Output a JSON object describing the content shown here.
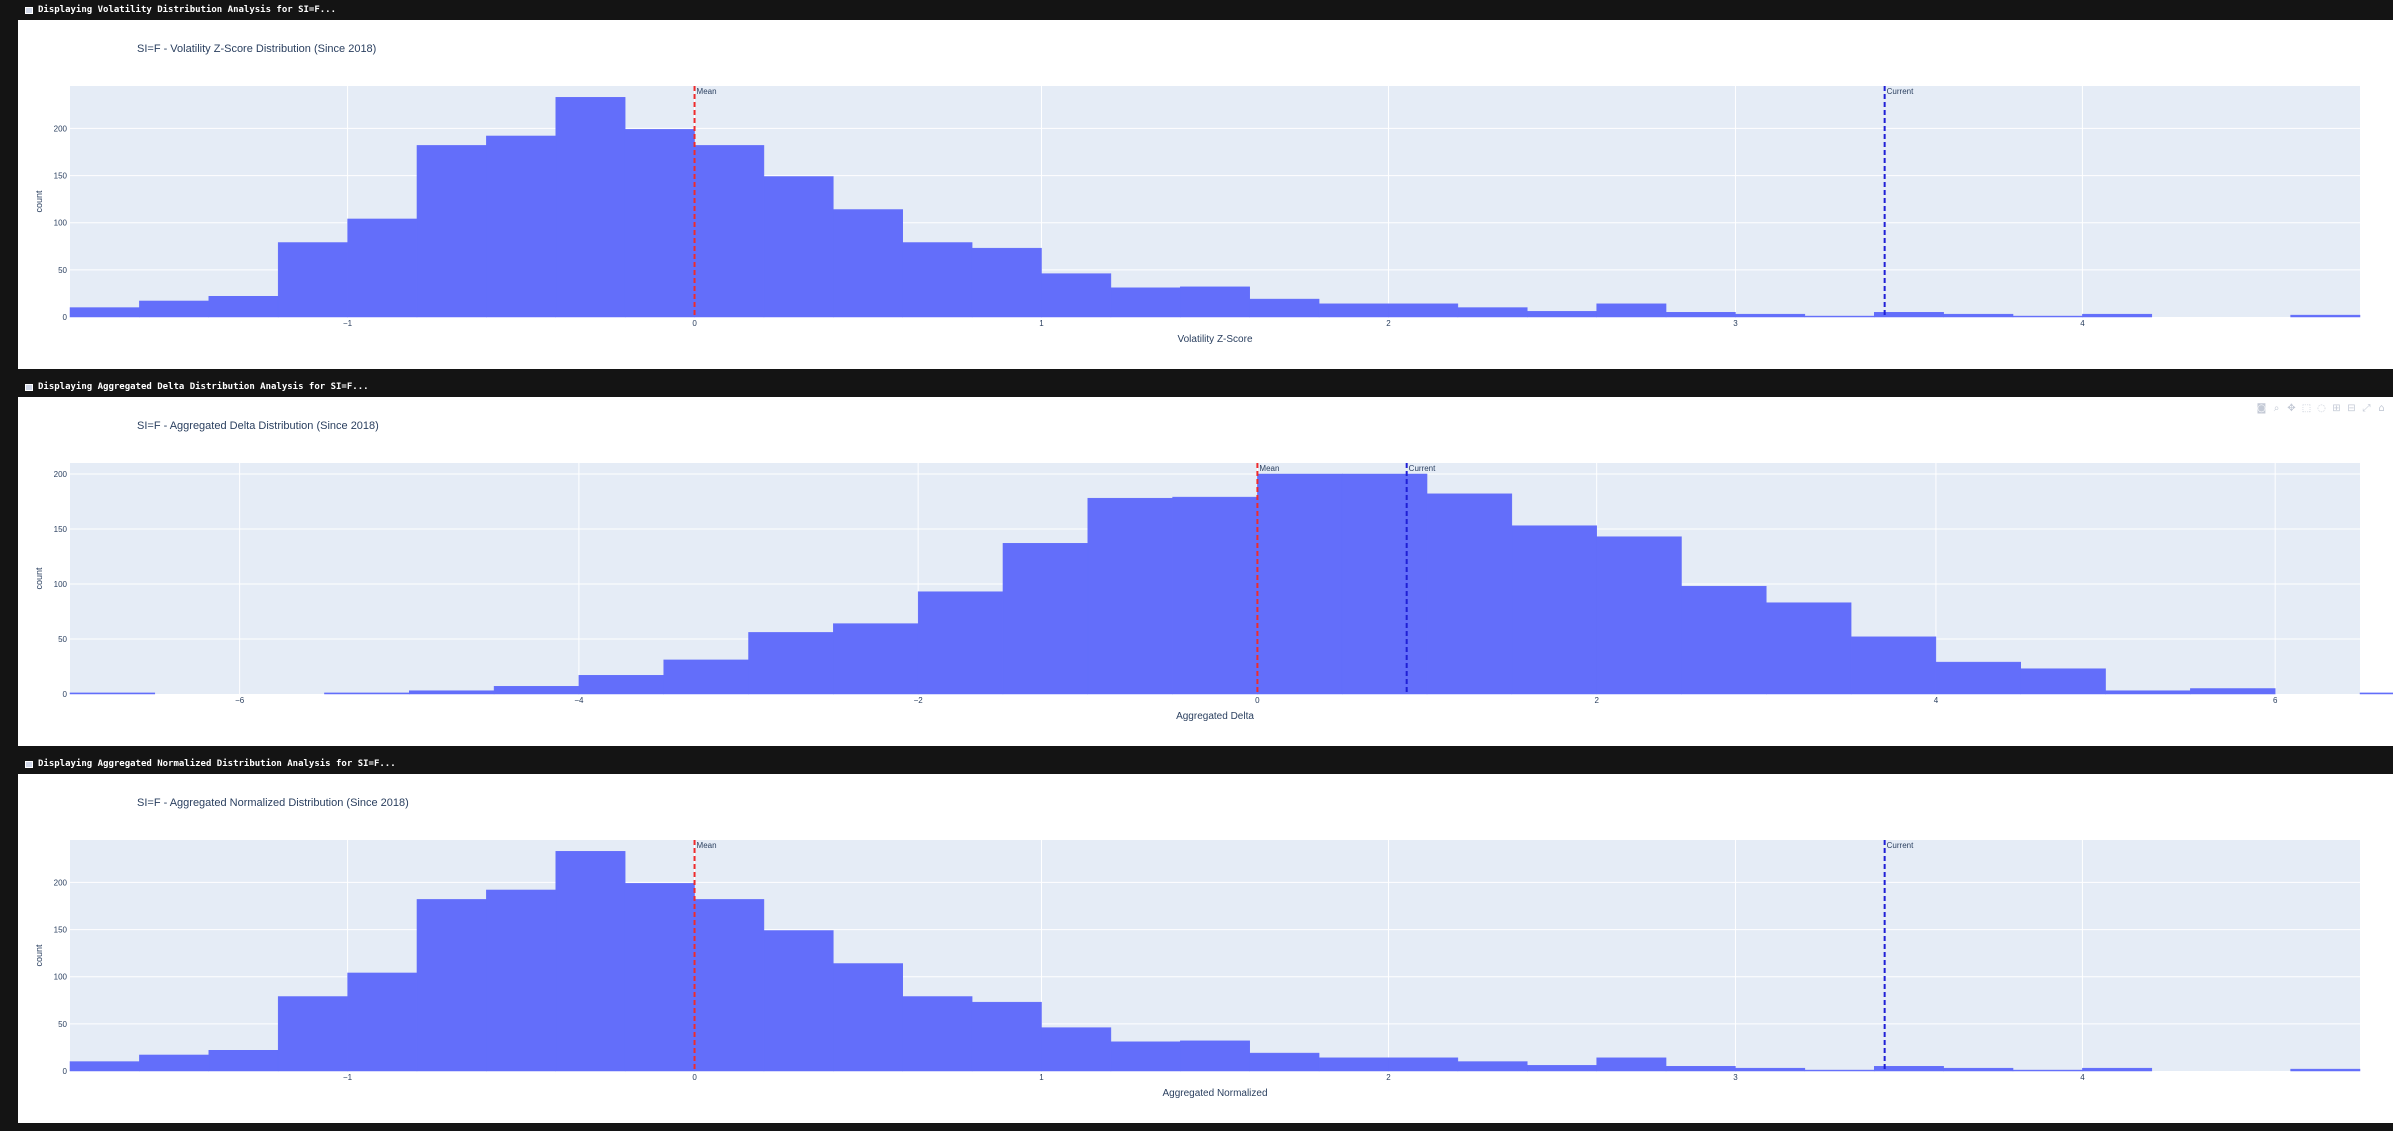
{
  "sections": [
    {
      "header": "Displaying Volatility Distribution Analysis for SI=F...",
      "show_modebar": false,
      "chart": {
        "type": "bar",
        "title": "SI=F - Volatility Z-Score Distribution (Since 2018)",
        "xlabel": "Volatility Z-Score",
        "ylabel": "count",
        "xlim": [
          -1.8,
          4.8
        ],
        "ylim": [
          0,
          245
        ],
        "bin_start": -1.8,
        "bin_width": 0.2,
        "values": [
          10,
          17,
          22,
          79,
          104,
          182,
          192,
          233,
          199,
          182,
          149,
          114,
          79,
          73,
          46,
          31,
          32,
          19,
          14,
          14,
          10,
          6,
          14,
          5,
          3,
          1,
          5,
          3,
          1,
          3,
          0,
          0,
          2
        ],
        "xticks": [
          -1,
          0,
          1,
          2,
          3,
          4
        ],
        "yticks": [
          0,
          50,
          100,
          150,
          200
        ],
        "mean": 0,
        "current": 3.43,
        "mean_label": "Mean",
        "current_label": "Current"
      }
    },
    {
      "header": "Displaying Aggregated Delta Distribution Analysis for SI=F...",
      "show_modebar": true,
      "chart": {
        "type": "bar",
        "title": "SI=F - Aggregated Delta Distribution (Since 2018)",
        "xlabel": "Aggregated Delta",
        "ylabel": "count",
        "xlim": [
          -7,
          6.5
        ],
        "ylim": [
          0,
          210
        ],
        "bin_start": -7,
        "bin_width": 0.5,
        "values": [
          1,
          0,
          0,
          1,
          3,
          7,
          17,
          31,
          56,
          64,
          93,
          137,
          178,
          179,
          200,
          200,
          182,
          153,
          143,
          98,
          83,
          52,
          29,
          23,
          3,
          5,
          0,
          1
        ],
        "xticks": [
          -6,
          -4,
          -2,
          0,
          2,
          4,
          6
        ],
        "yticks": [
          0,
          50,
          100,
          150,
          200
        ],
        "mean": 0,
        "current": 0.88,
        "mean_label": "Mean",
        "current_label": "Current"
      }
    },
    {
      "header": "Displaying Aggregated Normalized Distribution Analysis for SI=F...",
      "show_modebar": false,
      "chart": {
        "type": "bar",
        "title": "SI=F - Aggregated Normalized Distribution (Since 2018)",
        "xlabel": "Aggregated Normalized",
        "ylabel": "count",
        "xlim": [
          -1.8,
          4.8
        ],
        "ylim": [
          0,
          245
        ],
        "bin_start": -1.8,
        "bin_width": 0.2,
        "values": [
          10,
          17,
          22,
          79,
          104,
          182,
          192,
          233,
          199,
          182,
          149,
          114,
          79,
          73,
          46,
          31,
          32,
          19,
          14,
          14,
          10,
          6,
          14,
          5,
          3,
          1,
          5,
          3,
          1,
          3,
          0,
          0,
          2
        ],
        "xticks": [
          -1,
          0,
          1,
          2,
          3,
          4
        ],
        "yticks": [
          0,
          50,
          100,
          150,
          200
        ],
        "mean": 0,
        "current": 3.43,
        "mean_label": "Mean",
        "current_label": "Current"
      }
    }
  ],
  "colors": {
    "bar": "#636efa",
    "plot_bg": "#e5ecf6",
    "grid": "#ffffff",
    "mean_line": "#ef2b2b",
    "current_line": "#1f1fd6",
    "text": "#2a3f5f"
  },
  "modebar_icons": [
    "camera-icon",
    "zoom-icon",
    "pan-icon",
    "box-select-icon",
    "lasso-icon",
    "zoom-in-icon",
    "zoom-out-icon",
    "autoscale-icon",
    "home-icon"
  ]
}
